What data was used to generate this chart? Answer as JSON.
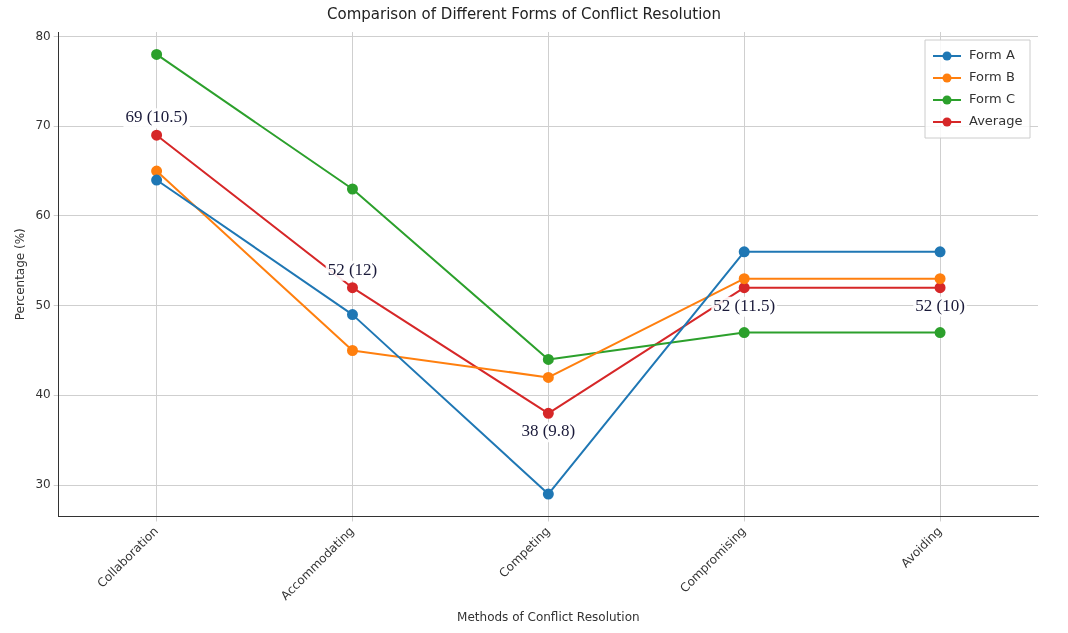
{
  "chart_data": {
    "type": "line",
    "title": "Comparison of Different Forms of Conflict Resolution",
    "xlabel": "Methods of Conflict Resolution",
    "ylabel": "Percentage (%)",
    "categories": [
      "Collaboration",
      "Accommodating",
      "Competing",
      "Compromising",
      "Avoiding"
    ],
    "series": [
      {
        "name": "Form A",
        "color": "#1f77b4",
        "values": [
          64,
          49,
          29,
          56,
          56
        ]
      },
      {
        "name": "Form B",
        "color": "#ff7f0e",
        "values": [
          65,
          45,
          42,
          53,
          53
        ]
      },
      {
        "name": "Form C",
        "color": "#2ca02c",
        "values": [
          78,
          63,
          44,
          47,
          47
        ]
      },
      {
        "name": "Average",
        "color": "#d62728",
        "values": [
          69,
          52,
          38,
          52,
          52
        ]
      }
    ],
    "annotations": [
      {
        "text": "69 (10.5)",
        "x": "Collaboration",
        "y": 69
      },
      {
        "text": "52 (12)",
        "x": "Accommodating",
        "y": 52
      },
      {
        "text": "38 (9.8)",
        "x": "Competing",
        "y": 38
      },
      {
        "text": "52 (11.5)",
        "x": "Compromising",
        "y": 52
      },
      {
        "text": "52 (10)",
        "x": "Avoiding",
        "y": 52
      }
    ],
    "ylim": [
      26.5,
      80.5
    ],
    "yticks": [
      30,
      40,
      50,
      60,
      70,
      80
    ],
    "grid": true,
    "legend": "top right",
    "marker": "circle",
    "line_style": "solid"
  }
}
